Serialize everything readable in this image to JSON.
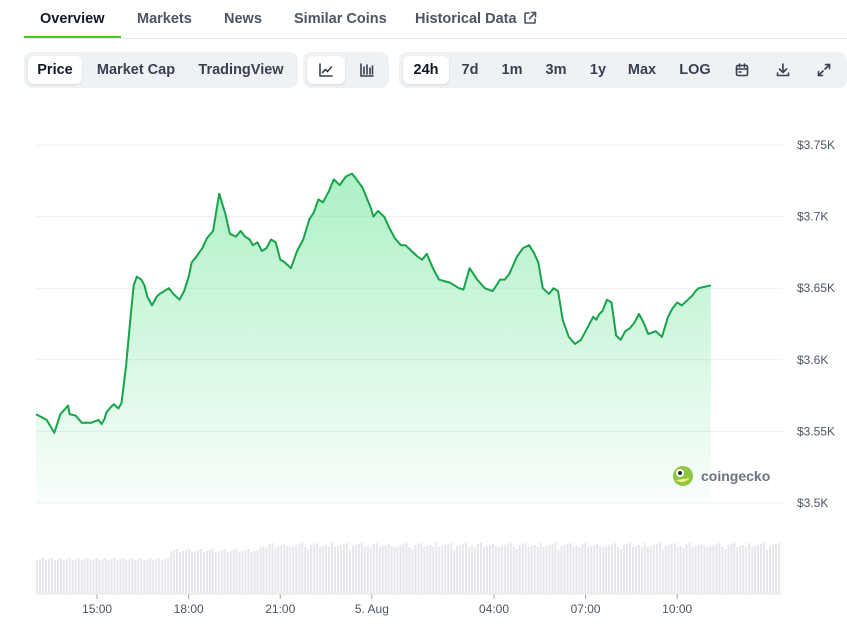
{
  "tabs": [
    {
      "label": "Overview",
      "active": true
    },
    {
      "label": "Markets",
      "active": false
    },
    {
      "label": "News",
      "active": false
    },
    {
      "label": "Similar Coins",
      "active": false
    },
    {
      "label": "Historical Data",
      "active": false,
      "icon": "external-link-icon"
    }
  ],
  "toolbar": {
    "metric_tabs": [
      {
        "label": "Price",
        "active": true
      },
      {
        "label": "Market Cap",
        "active": false
      },
      {
        "label": "TradingView",
        "active": false
      }
    ],
    "chart_type_buttons": [
      {
        "icon": "line-chart-icon",
        "active": true
      },
      {
        "icon": "candlestick-chart-icon",
        "active": false
      }
    ],
    "range_tabs": [
      {
        "label": "24h",
        "active": true
      },
      {
        "label": "7d",
        "active": false
      },
      {
        "label": "1m",
        "active": false
      },
      {
        "label": "3m",
        "active": false
      },
      {
        "label": "1y",
        "active": false
      },
      {
        "label": "Max",
        "active": false
      },
      {
        "label": "LOG",
        "active": false
      }
    ],
    "action_icons": [
      "calendar-icon",
      "download-icon",
      "fullscreen-icon"
    ]
  },
  "watermark": {
    "text": "coingecko",
    "icon": "coingecko-logo-icon"
  },
  "colors": {
    "line": "#16a34a",
    "accent": "#4bcc00",
    "volume": "#e5e7eb",
    "grid": "#eceff2"
  },
  "chart_data": {
    "type": "area",
    "x_unit": "hours since 13:00, 4 Aug",
    "ylim": [
      3500,
      3750
    ],
    "y_ticks": [
      3500,
      3550,
      3600,
      3650,
      3700,
      3750
    ],
    "y_tick_labels": [
      "$3.5K",
      "$3.55K",
      "$3.6K",
      "$3.65K",
      "$3.7K",
      "$3.75K"
    ],
    "x_ticks": [
      {
        "x": 2.0,
        "label": "15:00"
      },
      {
        "x": 5.0,
        "label": "18:00"
      },
      {
        "x": 8.0,
        "label": "21:00"
      },
      {
        "x": 11.0,
        "label": "5. Aug"
      },
      {
        "x": 15.0,
        "label": "04:00"
      },
      {
        "x": 18.0,
        "label": "07:00"
      },
      {
        "x": 21.0,
        "label": "10:00"
      }
    ],
    "xlim": [
      0,
      24.4
    ],
    "grid": true,
    "volume_shown": true,
    "x": [
      0.0,
      0.35,
      0.6,
      0.8,
      1.05,
      1.1,
      1.3,
      1.5,
      1.8,
      2.05,
      2.15,
      2.25,
      2.3,
      2.45,
      2.55,
      2.7,
      2.8,
      2.95,
      3.1,
      3.2,
      3.3,
      3.45,
      3.55,
      3.65,
      3.75,
      3.8,
      3.95,
      4.05,
      4.2,
      4.35,
      4.5,
      4.7,
      4.85,
      5.0,
      5.1,
      5.25,
      5.45,
      5.6,
      5.8,
      6.0,
      6.2,
      6.35,
      6.55,
      6.7,
      6.85,
      7.0,
      7.1,
      7.25,
      7.4,
      7.55,
      7.7,
      7.85,
      8.0,
      8.15,
      8.35,
      8.55,
      8.75,
      8.95,
      9.1,
      9.25,
      9.4,
      9.6,
      9.75,
      9.95,
      10.15,
      10.35,
      10.5,
      10.7,
      10.85,
      10.95,
      11.05,
      11.2,
      11.4,
      11.55,
      11.75,
      11.95,
      12.1,
      12.3,
      12.5,
      12.65,
      12.8,
      13.0,
      13.2,
      13.35,
      13.55,
      13.7,
      13.85,
      14.0,
      14.2,
      14.45,
      14.7,
      14.95,
      15.05,
      15.2,
      15.35,
      15.5,
      15.75,
      15.95,
      16.15,
      16.3,
      16.45,
      16.6,
      16.8,
      16.95,
      17.1,
      17.25,
      17.45,
      17.65,
      17.85,
      18.05,
      18.25,
      18.35,
      18.45,
      18.55,
      18.7,
      18.85,
      19.0,
      19.15,
      19.3,
      19.45,
      19.6,
      19.75,
      19.9,
      20.05,
      20.3,
      20.5,
      20.7,
      20.85,
      21.0,
      21.15,
      21.35,
      21.5,
      21.6,
      21.7,
      21.9,
      22.1
    ],
    "y": [
      3562,
      3558,
      3549,
      3562,
      3568,
      3562,
      3561,
      3556,
      3556,
      3558,
      3555,
      3559,
      3563,
      3567,
      3569,
      3566,
      3570,
      3596,
      3631,
      3652,
      3658,
      3656,
      3652,
      3644,
      3640,
      3638,
      3644,
      3646,
      3648,
      3650,
      3646,
      3642,
      3648,
      3658,
      3668,
      3672,
      3678,
      3685,
      3690,
      3716,
      3702,
      3688,
      3686,
      3690,
      3686,
      3684,
      3680,
      3682,
      3676,
      3678,
      3684,
      3682,
      3670,
      3668,
      3664,
      3676,
      3684,
      3698,
      3703,
      3712,
      3710,
      3718,
      3726,
      3722,
      3728,
      3730,
      3726,
      3720,
      3712,
      3707,
      3700,
      3704,
      3700,
      3693,
      3685,
      3680,
      3680,
      3676,
      3672,
      3670,
      3674,
      3664,
      3656,
      3655,
      3654,
      3652,
      3650,
      3649,
      3664,
      3656,
      3650,
      3648,
      3651,
      3656,
      3656,
      3660,
      3672,
      3678,
      3680,
      3675,
      3668,
      3650,
      3646,
      3650,
      3648,
      3628,
      3616,
      3611,
      3614,
      3622,
      3630,
      3628,
      3632,
      3634,
      3642,
      3640,
      3617,
      3614,
      3620,
      3622,
      3626,
      3632,
      3626,
      3618,
      3620,
      3616,
      3630,
      3636,
      3640,
      3638,
      3642,
      3645,
      3648,
      3650,
      3651,
      3652
    ]
  }
}
